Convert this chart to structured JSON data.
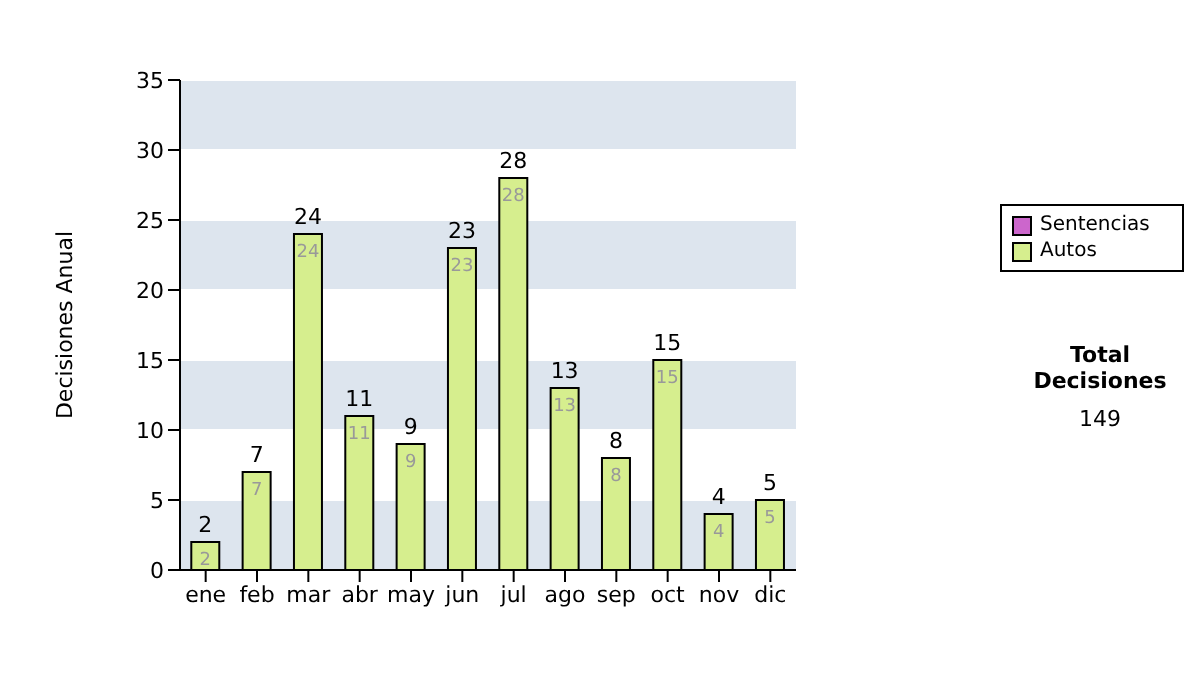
{
  "chart_data": {
    "type": "bar",
    "ylabel": "Decisiones Anual",
    "categories": [
      "ene",
      "feb",
      "mar",
      "abr",
      "may",
      "jun",
      "jul",
      "ago",
      "sep",
      "oct",
      "nov",
      "dic"
    ],
    "series": [
      {
        "name": "Sentencias",
        "color": "#cc66cc",
        "values": [
          0,
          0,
          0,
          0,
          0,
          0,
          0,
          0,
          0,
          0,
          0,
          0
        ],
        "value_labels": [
          null,
          null,
          null,
          null,
          null,
          null,
          null,
          null,
          null,
          null,
          null,
          null
        ]
      },
      {
        "name": "Autos",
        "color": "#d6ee8e",
        "values": [
          2,
          7,
          24,
          11,
          9,
          23,
          28,
          13,
          8,
          15,
          4,
          5
        ],
        "value_labels": [
          "2",
          "7",
          "24",
          "11",
          "9",
          "23",
          "28",
          "13",
          "8",
          "15",
          "4",
          "5"
        ]
      }
    ],
    "stacked": true,
    "totals": [
      "2",
      "7",
      "24",
      "11",
      "9",
      "23",
      "28",
      "13",
      "8",
      "15",
      "4",
      "5"
    ],
    "ylim": [
      0,
      35
    ],
    "yticks": [
      0,
      5,
      10,
      15,
      20,
      25,
      30,
      35
    ],
    "grid": "y",
    "legend": "right",
    "annotations": [
      "Total Decisiones",
      "149"
    ]
  }
}
